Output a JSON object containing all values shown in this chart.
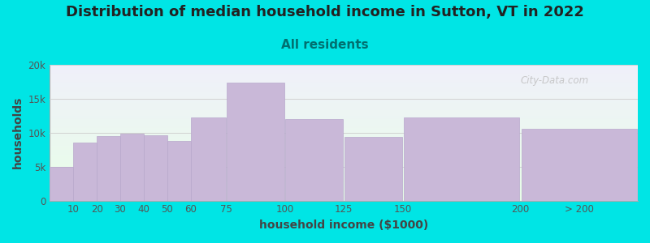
{
  "title": "Distribution of median household income in Sutton, VT in 2022",
  "subtitle": "All residents",
  "xlabel": "household income ($1000)",
  "ylabel": "households",
  "bar_left_edges": [
    0,
    10,
    20,
    30,
    40,
    50,
    60,
    75,
    100,
    125,
    150,
    200
  ],
  "bar_widths": [
    10,
    10,
    10,
    10,
    10,
    10,
    15,
    25,
    25,
    25,
    50,
    50
  ],
  "bar_heights": [
    5000,
    8500,
    9500,
    9800,
    9600,
    8800,
    12300,
    17400,
    12000,
    9400,
    12300,
    10600
  ],
  "xtick_positions": [
    10,
    20,
    30,
    40,
    50,
    60,
    75,
    100,
    125,
    150,
    200,
    225
  ],
  "xtick_labels": [
    "10",
    "20",
    "30",
    "40",
    "50",
    "60",
    "75",
    "100",
    "125",
    "150",
    "200",
    "> 200"
  ],
  "bar_color": "#c9b8d8",
  "bar_edge_color": "#b8a8cc",
  "background_color": "#00e5e5",
  "plot_bg_top": "#e8ffe8",
  "plot_bg_bottom": "#f0f0fa",
  "title_color": "#222222",
  "subtitle_color": "#007070",
  "axis_label_color": "#444444",
  "tick_color": "#555555",
  "ylim": [
    0,
    20000
  ],
  "yticks": [
    0,
    5000,
    10000,
    15000,
    20000
  ],
  "ytick_labels": [
    "0",
    "5k",
    "10k",
    "15k",
    "20k"
  ],
  "watermark_text": "City-Data.com",
  "title_fontsize": 13,
  "subtitle_fontsize": 11,
  "label_fontsize": 10,
  "tick_fontsize": 8.5
}
